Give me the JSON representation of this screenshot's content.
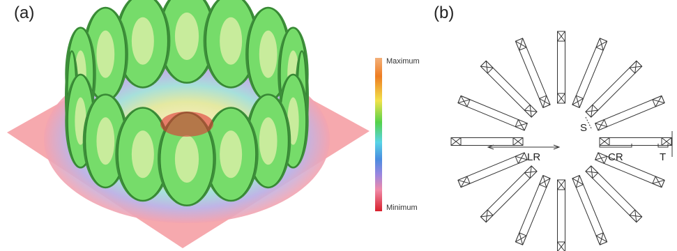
{
  "panel_a": {
    "label": "(a)",
    "colorbar": {
      "max_label": "Maximum",
      "min_label": "Minimum"
    }
  },
  "panel_b": {
    "label": "(b)",
    "annotations": {
      "s": "S",
      "lr": "LR",
      "cr": "CR",
      "t": "T"
    }
  }
}
